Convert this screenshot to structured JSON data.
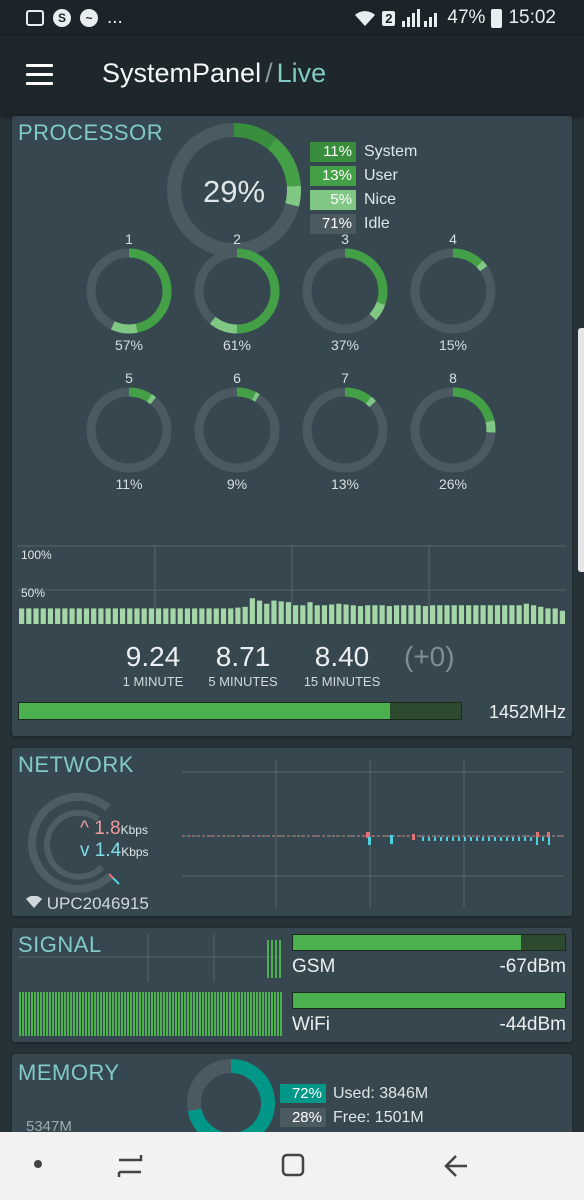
{
  "status_bar": {
    "left_icons": [
      "image-icon",
      "skype-icon",
      "messenger-icon"
    ],
    "overflow": "...",
    "sim_badge": "2",
    "battery": "47%",
    "time": "15:02"
  },
  "app_bar": {
    "title": "SystemPanel",
    "separator": "/",
    "subtitle": "Live"
  },
  "processor": {
    "title": "PROCESSOR",
    "total": "29%",
    "legend": [
      {
        "value": "11%",
        "label": "System",
        "color": "#388e3c"
      },
      {
        "value": "13%",
        "label": "User",
        "color": "#43a047"
      },
      {
        "value": "5%",
        "label": "Nice",
        "color": "#81c784"
      },
      {
        "value": "71%",
        "label": "Idle",
        "color": "#4b5a61"
      }
    ],
    "cores": [
      {
        "label": "1",
        "value": "57%"
      },
      {
        "label": "2",
        "value": "61%"
      },
      {
        "label": "3",
        "value": "37%"
      },
      {
        "label": "4",
        "value": "15%"
      },
      {
        "label": "5",
        "value": "11%"
      },
      {
        "label": "6",
        "value": "9%"
      },
      {
        "label": "7",
        "value": "13%"
      },
      {
        "label": "8",
        "value": "26%"
      }
    ],
    "history_labels": [
      "100%",
      "50%"
    ],
    "history_values": [
      20,
      20,
      20,
      20,
      20,
      20,
      20,
      20,
      20,
      20,
      20,
      20,
      20,
      20,
      20,
      20,
      20,
      20,
      20,
      20,
      20,
      20,
      20,
      20,
      20,
      20,
      20,
      20,
      20,
      20,
      21,
      22,
      33,
      30,
      26,
      30,
      29,
      28,
      24,
      24,
      28,
      24,
      24,
      25,
      26,
      25,
      24,
      23,
      24,
      24,
      24,
      23,
      24,
      24,
      24,
      24,
      23,
      24,
      24,
      24,
      24,
      24,
      24,
      24,
      24,
      24,
      24,
      24,
      24,
      24,
      26,
      24,
      22,
      20,
      20,
      17
    ],
    "load": [
      {
        "value": "9.24",
        "label": "1 MINUTE"
      },
      {
        "value": "8.71",
        "label": "5 MINUTES"
      },
      {
        "value": "8.40",
        "label": "15 MINUTES"
      }
    ],
    "load_change": "(+0)",
    "frequency": "1452MHz",
    "frequency_fraction": 0.84
  },
  "network": {
    "title": "NETWORK",
    "up_rate": "1.8",
    "down_rate": "1.4",
    "unit": "Kbps",
    "ssid": "UPC2046915"
  },
  "signal": {
    "title": "SIGNAL",
    "gsm": {
      "label": "GSM",
      "value": "-67dBm",
      "fraction": 0.84
    },
    "wifi": {
      "label": "WiFi",
      "value": "-44dBm",
      "fraction": 1.0
    }
  },
  "memory": {
    "title": "MEMORY",
    "used": {
      "pct": "72%",
      "label": "Used: 3846M",
      "color": "#009688"
    },
    "free": {
      "pct": "28%",
      "label": "Free: 1501M",
      "color": "#4b5a61"
    },
    "total": "5347M"
  }
}
